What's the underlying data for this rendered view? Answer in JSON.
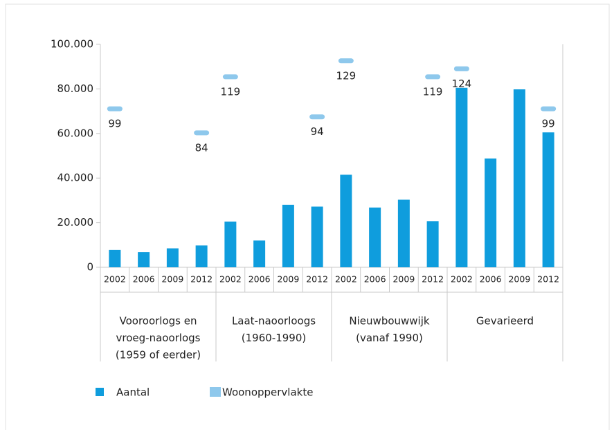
{
  "chart_data": {
    "type": "bar",
    "categories": [
      "2002",
      "2006",
      "2009",
      "2012",
      "2002",
      "2006",
      "2009",
      "2012",
      "2002",
      "2006",
      "2009",
      "2012",
      "2002",
      "2006",
      "2009",
      "2012"
    ],
    "groups": [
      [
        "Vooroorlogs en",
        "vroeg-naoorlogs",
        "(1959 of eerder)"
      ],
      [
        "Laat-naoorloogs",
        "(1960-1990)"
      ],
      [
        "Nieuwbouwwijk",
        "(vanaf 1990)"
      ],
      [
        "Gevarieerd"
      ]
    ],
    "series": [
      {
        "name": "Aantal",
        "color": "#0f9ddd",
        "values": [
          7800,
          6800,
          8500,
          9800,
          20500,
          12000,
          28000,
          27200,
          41500,
          26800,
          30300,
          20700,
          80500,
          48800,
          79800,
          60500
        ]
      },
      {
        "name": "Woonoppervlakte",
        "color": "#8ec8ec",
        "axis": "y2",
        "values": [
          99,
          null,
          null,
          84,
          119,
          null,
          null,
          94,
          129,
          null,
          null,
          119,
          124,
          null,
          null,
          99
        ]
      }
    ],
    "ylim": [
      0,
      100000
    ],
    "yticks": [
      0,
      {
        "value": 20000,
        "label": "20.000"
      },
      {
        "value": 40000,
        "label": "40.000"
      },
      {
        "value": 60000,
        "label": "60.000"
      },
      {
        "value": 80000,
        "label": "80.000"
      },
      {
        "value": 100000,
        "label": "100.000"
      }
    ],
    "y2lim": [
      0,
      139.3
    ],
    "grid": false,
    "legend": "bottom"
  }
}
